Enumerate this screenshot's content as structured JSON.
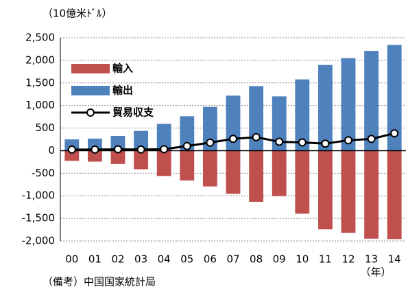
{
  "chart_data": {
    "type": "bar",
    "unit_label": "（10億米ﾄﾞﾙ）",
    "x_unit_label": "（年）",
    "note": "（備考）中国国家統計局",
    "categories": [
      "00",
      "01",
      "02",
      "03",
      "04",
      "05",
      "06",
      "07",
      "08",
      "09",
      "10",
      "11",
      "12",
      "13",
      "14"
    ],
    "series": [
      {
        "name": "輸入",
        "type": "bar",
        "color": "#c0504d",
        "values": [
          -225,
          -244,
          -295,
          -413,
          -561,
          -660,
          -792,
          -956,
          -1133,
          -1006,
          -1396,
          -1743,
          -1818,
          -1950,
          -1959
        ]
      },
      {
        "name": "輸出",
        "type": "bar",
        "color": "#4f81bd",
        "values": [
          249,
          266,
          326,
          438,
          593,
          762,
          969,
          1218,
          1430,
          1202,
          1578,
          1898,
          2049,
          2209,
          2342
        ]
      },
      {
        "name": "貿易収支",
        "type": "line",
        "color": "#000000",
        "values": [
          24,
          23,
          30,
          25,
          32,
          102,
          178,
          262,
          298,
          196,
          182,
          155,
          230,
          259,
          383
        ]
      }
    ],
    "ylim": [
      -2000,
      2500
    ],
    "yticks": [
      {
        "value": -2000,
        "label": "-2,000"
      },
      {
        "value": -1500,
        "label": "-1,500"
      },
      {
        "value": -1000,
        "label": "-1,000"
      },
      -500,
      0,
      500,
      {
        "value": 1000,
        "label": "1,000"
      },
      {
        "value": 1500,
        "label": "1,500"
      },
      {
        "value": 2000,
        "label": "2,000"
      },
      {
        "value": 2500,
        "label": "2,500"
      }
    ],
    "grid": true,
    "legend": "upper left"
  }
}
